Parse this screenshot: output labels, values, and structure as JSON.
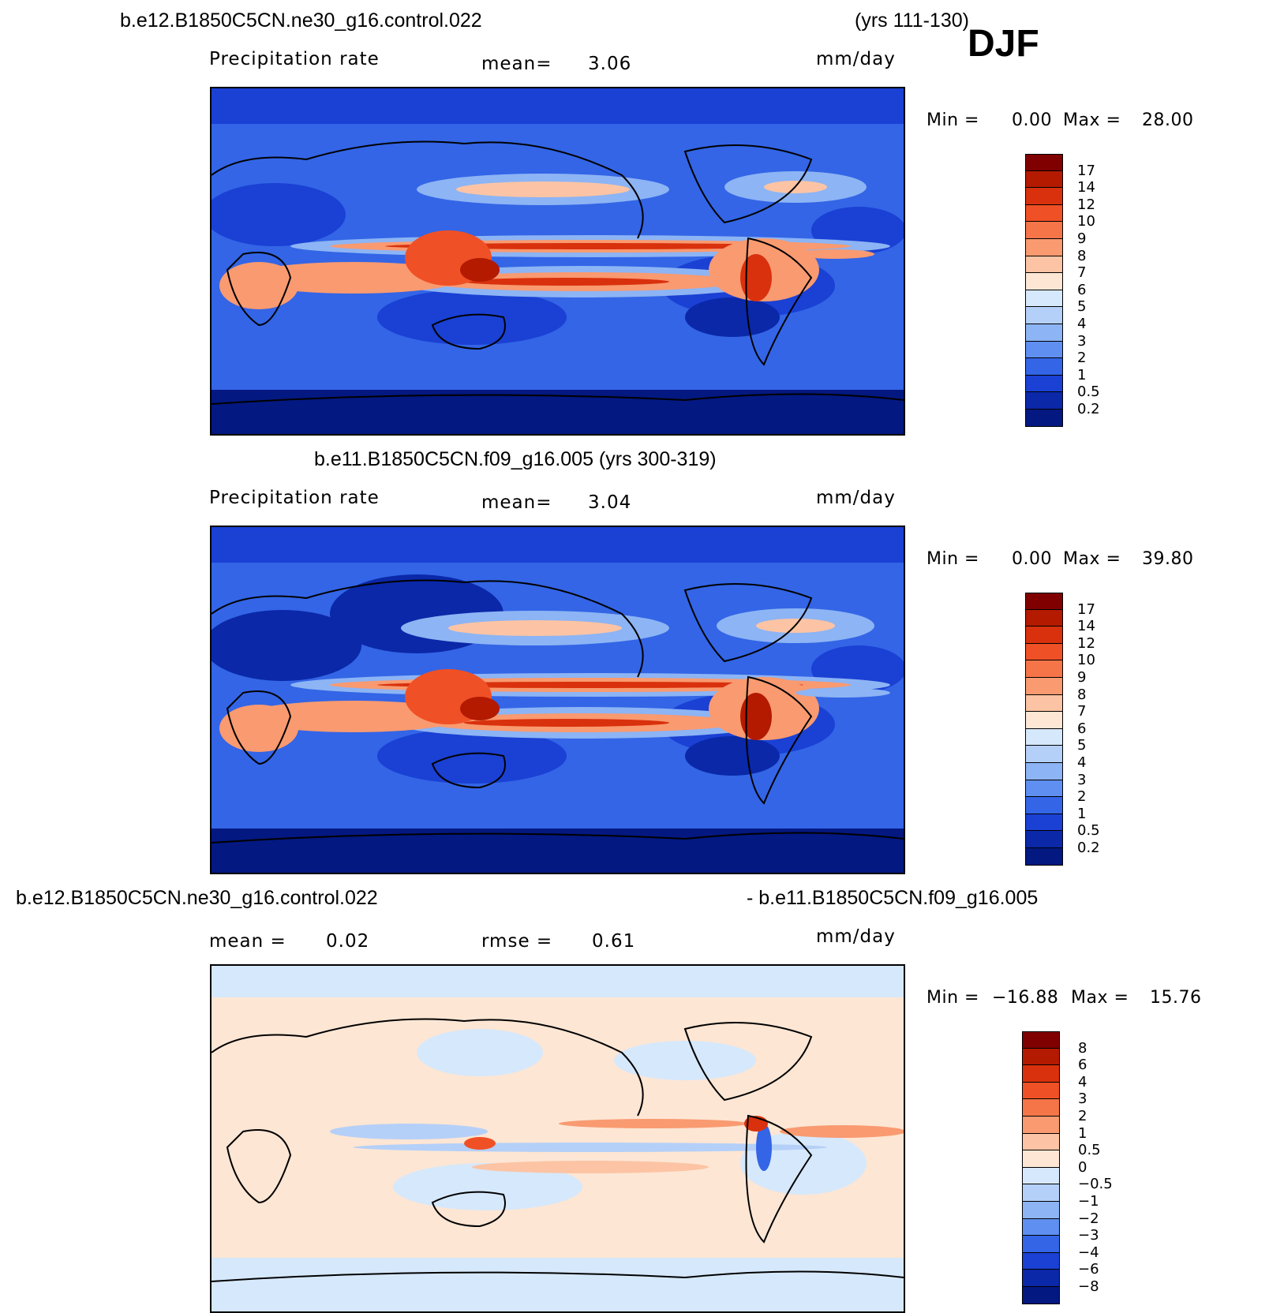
{
  "header": {
    "case1": "b.e12.B1850C5CN.ne30_g16.control.022",
    "years1": "(yrs 111-130)",
    "season": "DJF"
  },
  "panels": [
    {
      "id": "panel1",
      "title": "",
      "field_label": "Precipitation  rate",
      "mean_label": "mean=",
      "mean_value": "3.06",
      "units": "mm/day",
      "min_label": "Min  =",
      "min_value": "0.00",
      "max_label": "Max  =",
      "max_value": "28.00",
      "colorbar_labels": [
        "17",
        "14",
        "12",
        "10",
        "9",
        "8",
        "7",
        "6",
        "5",
        "4",
        "3",
        "2",
        "1",
        "0.5",
        "0.2"
      ],
      "colorbar_colors": [
        "#800000",
        "#b31a00",
        "#d9310d",
        "#f05025",
        "#f57448",
        "#f99a70",
        "#fcc4a4",
        "#fde6d4",
        "#d6e8fb",
        "#b4d0f8",
        "#8db4f4",
        "#5f8ff0",
        "#3365e6",
        "#1a40d4",
        "#0a28a8",
        "#031880"
      ]
    },
    {
      "id": "panel2",
      "title": "b.e11.B1850C5CN.f09_g16.005 (yrs 300-319)",
      "field_label": "Precipitation  rate",
      "mean_label": "mean=",
      "mean_value": "3.04",
      "units": "mm/day",
      "min_label": "Min  =",
      "min_value": "0.00",
      "max_label": "Max  =",
      "max_value": "39.80",
      "colorbar_labels": [
        "17",
        "14",
        "12",
        "10",
        "9",
        "8",
        "7",
        "6",
        "5",
        "4",
        "3",
        "2",
        "1",
        "0.5",
        "0.2"
      ],
      "colorbar_colors": [
        "#800000",
        "#b31a00",
        "#d9310d",
        "#f05025",
        "#f57448",
        "#f99a70",
        "#fcc4a4",
        "#fde6d4",
        "#d6e8fb",
        "#b4d0f8",
        "#8db4f4",
        "#5f8ff0",
        "#3365e6",
        "#1a40d4",
        "#0a28a8",
        "#031880"
      ]
    },
    {
      "id": "panel3",
      "title_left": "b.e12.B1850C5CN.ne30_g16.control.022",
      "title_right": "- b.e11.B1850C5CN.f09_g16.005",
      "mean_label": "mean =",
      "mean_value": "0.02",
      "rmse_label": "rmse =",
      "rmse_value": "0.61",
      "units": "mm/day",
      "min_label": "Min  =",
      "min_value": "−16.88",
      "max_label": "Max  =",
      "max_value": "15.76",
      "colorbar_labels": [
        "8",
        "6",
        "4",
        "3",
        "2",
        "1",
        "0.5",
        "0",
        "−0.5",
        "−1",
        "−2",
        "−3",
        "−4",
        "−6",
        "−8"
      ],
      "colorbar_colors": [
        "#800000",
        "#b31a00",
        "#d9310d",
        "#f05025",
        "#f57448",
        "#f99a70",
        "#fcc4a4",
        "#fde6d4",
        "#d6e8fb",
        "#b4d0f8",
        "#8db4f4",
        "#5f8ff0",
        "#3365e6",
        "#1a40d4",
        "#0a28a8",
        "#031880"
      ]
    }
  ]
}
